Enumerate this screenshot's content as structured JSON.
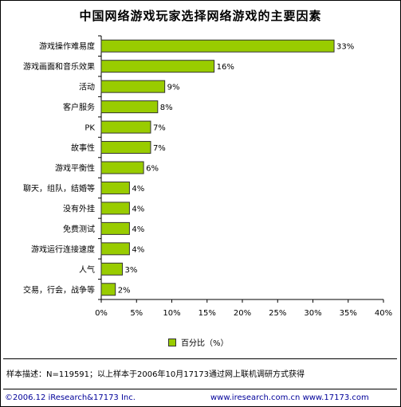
{
  "chart_data": {
    "type": "bar",
    "orientation": "horizontal",
    "title": "中国网络游戏玩家选择网络游戏的主要因素",
    "categories": [
      "游戏操作难易度",
      "游戏画面和音乐效果",
      "活动",
      "客户服务",
      "PK",
      "故事性",
      "游戏平衡性",
      "聊天，组队，结婚等",
      "没有外挂",
      "免费测试",
      "游戏运行连接速度",
      "人气",
      "交易，行会，战争等"
    ],
    "values": [
      33,
      16,
      9,
      8,
      7,
      7,
      6,
      4,
      4,
      4,
      4,
      3,
      2
    ],
    "value_labels": [
      "33%",
      "16%",
      "9%",
      "8%",
      "7%",
      "7%",
      "6%",
      "4%",
      "4%",
      "4%",
      "4%",
      "3%",
      "2%"
    ],
    "x_ticks": [
      "0%",
      "5%",
      "10%",
      "15%",
      "20%",
      "25%",
      "30%",
      "35%",
      "40%"
    ],
    "xlim": [
      0,
      40
    ],
    "grid": false,
    "legend": "bottom",
    "series": [
      {
        "name": "百分比（%）",
        "color": "#99cc00"
      }
    ]
  },
  "legend_label": "百分比（%）",
  "note": "样本描述：N=119591；以上样本于2006年10月17173通过网上联机调研方式获得",
  "footer": {
    "left": "©2006.12 iResearch&17173 Inc.",
    "right": "www.iresearch.com.cn   www.17173.com"
  }
}
